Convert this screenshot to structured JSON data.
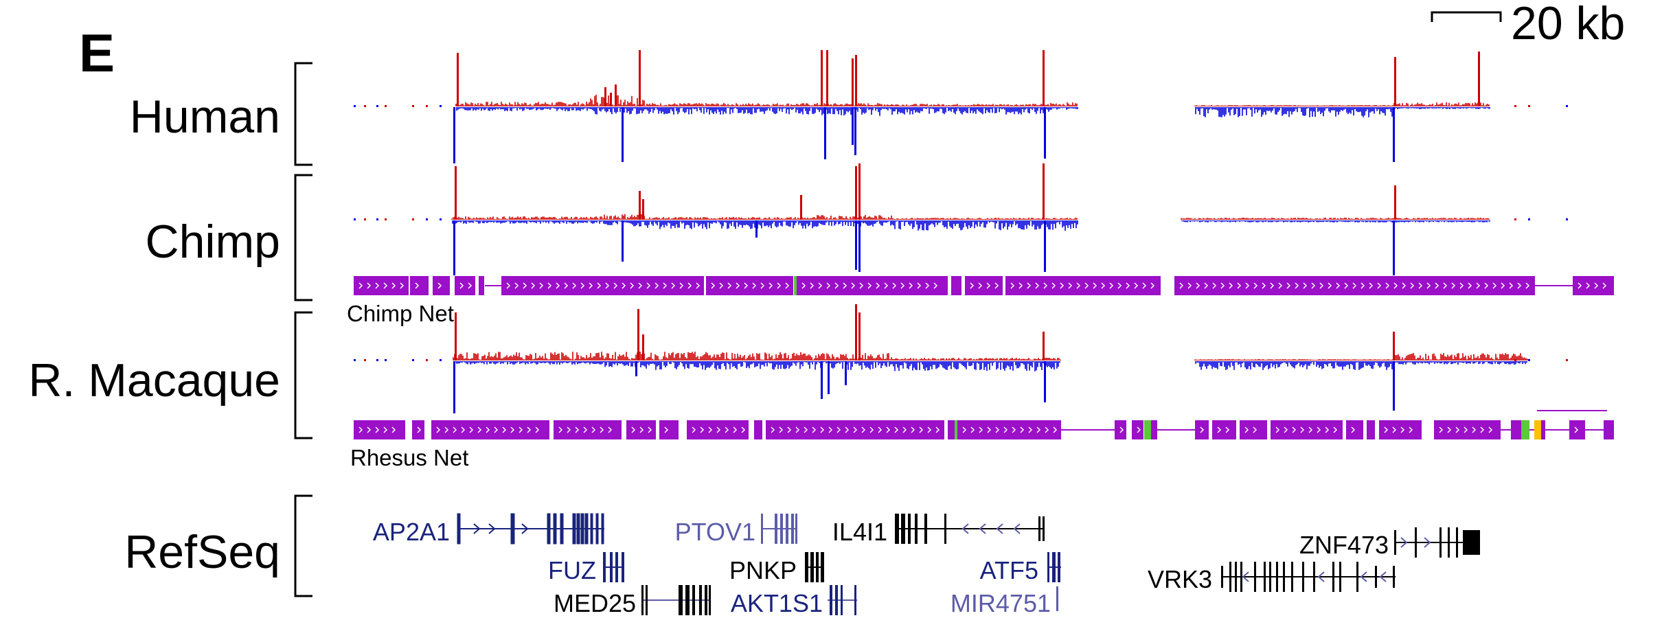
{
  "panel_letter": "E",
  "scale_bar": {
    "label": "20 kb"
  },
  "tracks": [
    {
      "id": "human",
      "label": "Human"
    },
    {
      "id": "chimp",
      "label": "Chimp"
    },
    {
      "id": "macaque",
      "label": "R. Macaque"
    },
    {
      "id": "refseq",
      "label": "RefSeq"
    }
  ],
  "net_tracks": [
    {
      "id": "chimp-net",
      "label": "Chimp Net"
    },
    {
      "id": "rhesus-net",
      "label": "Rhesus Net"
    }
  ],
  "genes": [
    {
      "id": "ap2a1",
      "label": "AP2A1",
      "color": "#1a237e"
    },
    {
      "id": "fuz",
      "label": "FUZ",
      "color": "#1a237e"
    },
    {
      "id": "med25",
      "label": "MED25",
      "color": "#000000"
    },
    {
      "id": "ptov1",
      "label": "PTOV1",
      "color": "#5c5ca8"
    },
    {
      "id": "pnkp",
      "label": "PNKP",
      "color": "#000000"
    },
    {
      "id": "akt1s1",
      "label": "AKT1S1",
      "color": "#1a237e"
    },
    {
      "id": "il4i1",
      "label": "IL4I1",
      "color": "#000000"
    },
    {
      "id": "atf5",
      "label": "ATF5",
      "color": "#1a237e"
    },
    {
      "id": "mir4751",
      "label": "MIR4751",
      "color": "#5c5ca8"
    },
    {
      "id": "znf473",
      "label": "ZNF473",
      "color": "#000000"
    },
    {
      "id": "vrk3",
      "label": "VRK3",
      "color": "#000000"
    }
  ],
  "colors": {
    "plus_strand": "#cc0000",
    "minus_strand": "#0000dd",
    "net": "#9b10c8",
    "net_green": "#5cc83c",
    "net_yellow": "#ffc000"
  }
}
